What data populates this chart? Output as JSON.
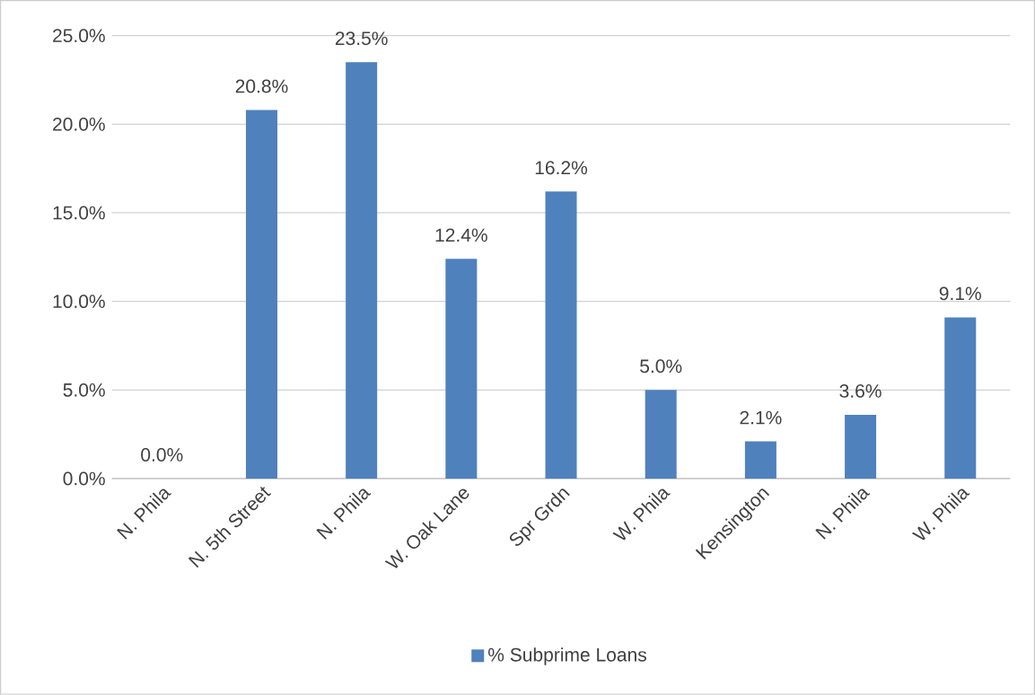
{
  "chart_data": {
    "type": "bar",
    "categories": [
      "N. Phila",
      "N. 5th Street",
      "N. Phila",
      "W. Oak Lane",
      "Spr Grdn",
      "W. Phila",
      "Kensington",
      "N. Phila",
      "W. Phila"
    ],
    "series": [
      {
        "name": "% Subprime Loans",
        "color": "#4f81bd",
        "values": [
          0.0,
          20.8,
          23.5,
          12.4,
          16.2,
          5.0,
          2.1,
          3.6,
          9.1
        ],
        "value_labels": [
          "0.0%",
          "20.8%",
          "23.5%",
          "12.4%",
          "16.2%",
          "5.0%",
          "2.1%",
          "3.6%",
          "9.1%"
        ]
      }
    ],
    "ylim": [
      0,
      25
    ],
    "yticks": [
      {
        "value": 0,
        "label": "0.0%"
      },
      {
        "value": 5,
        "label": "5.0%"
      },
      {
        "value": 10,
        "label": "10.0%"
      },
      {
        "value": 15,
        "label": "15.0%"
      },
      {
        "value": 20,
        "label": "20.0%"
      },
      {
        "value": 25,
        "label": "25.0%"
      }
    ],
    "grid": "y",
    "legend": "bottom"
  }
}
